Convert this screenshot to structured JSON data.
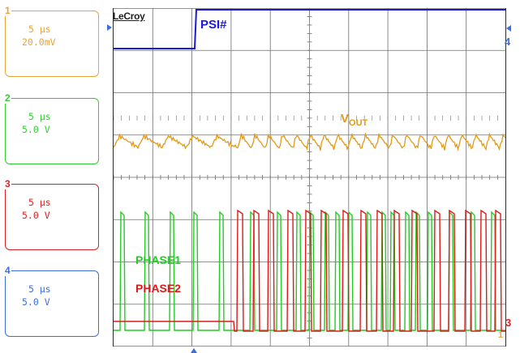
{
  "brand": "LeCroy",
  "channels": [
    {
      "num": "1",
      "timebase": "5 µs",
      "scale": "20.0mV",
      "color": "#e8a33c"
    },
    {
      "num": "2",
      "timebase": "5 µs",
      "scale": "5.0 V",
      "color": "#33cc33"
    },
    {
      "num": "3",
      "timebase": "5 µs",
      "scale": "5.0 V",
      "color": "#dd2222"
    },
    {
      "num": "4",
      "timebase": "5 µs",
      "scale": "5.0 V",
      "color": "#3b6fd9"
    }
  ],
  "labels": {
    "psi": "PSI#",
    "vout": "V",
    "vout_sub": "OUT",
    "phase1": "PHASE1",
    "phase2": "PHASE2"
  },
  "edge_markers": {
    "ch4": "4",
    "ch3": "3",
    "ch_trigger": "1"
  },
  "colors": {
    "grid": "#6e6e6e",
    "psi": "#1a1ad8",
    "vout": "#e29a18",
    "phase1": "#22cc22",
    "phase2": "#e01818",
    "frame": "#2c2c2c"
  }
}
